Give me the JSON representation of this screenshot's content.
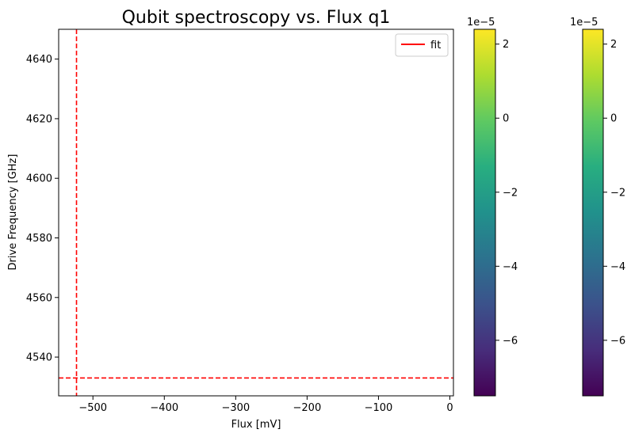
{
  "chart_data": {
    "type": "heatmap",
    "title": "Qubit spectroscopy vs. Flux q1",
    "xlabel": "Flux [mV]",
    "ylabel": "Drive Frequency [GHz]",
    "xlim": [
      -548,
      5
    ],
    "ylim": [
      4527,
      4650
    ],
    "xticks": [
      -500,
      -400,
      -300,
      -200,
      -100,
      0
    ],
    "xtick_labels": [
      "−500",
      "−400",
      "−300",
      "−200",
      "−100",
      "0"
    ],
    "yticks": [
      4540,
      4560,
      4580,
      4600,
      4620,
      4640
    ],
    "ytick_labels": [
      "4540",
      "4560",
      "4580",
      "4600",
      "4620",
      "4640"
    ],
    "grid": false,
    "legend": {
      "position": "upper right",
      "entries": [
        {
          "label": "fit",
          "color": "#ff0000",
          "style": "solid"
        }
      ]
    },
    "lines": [
      {
        "orientation": "vertical",
        "x": -523,
        "color": "#ff0000",
        "style": "dashed"
      },
      {
        "orientation": "horizontal",
        "y": 4533,
        "color": "#ff0000",
        "style": "dashed"
      }
    ],
    "colorbars": [
      {
        "colormap": "viridis",
        "vmin": -7.5,
        "vmax": 2.4,
        "offset_label": "1e−5",
        "ticks": [
          2,
          0,
          -2,
          -4,
          -6
        ],
        "tick_labels": [
          "2",
          "0",
          "−2",
          "−4",
          "−6"
        ]
      },
      {
        "colormap": "viridis",
        "vmin": -7.5,
        "vmax": 2.4,
        "offset_label": "1e−5",
        "ticks": [
          2,
          0,
          -2,
          -4,
          -6
        ],
        "tick_labels": [
          "2",
          "0",
          "−2",
          "−4",
          "−6"
        ]
      }
    ]
  }
}
